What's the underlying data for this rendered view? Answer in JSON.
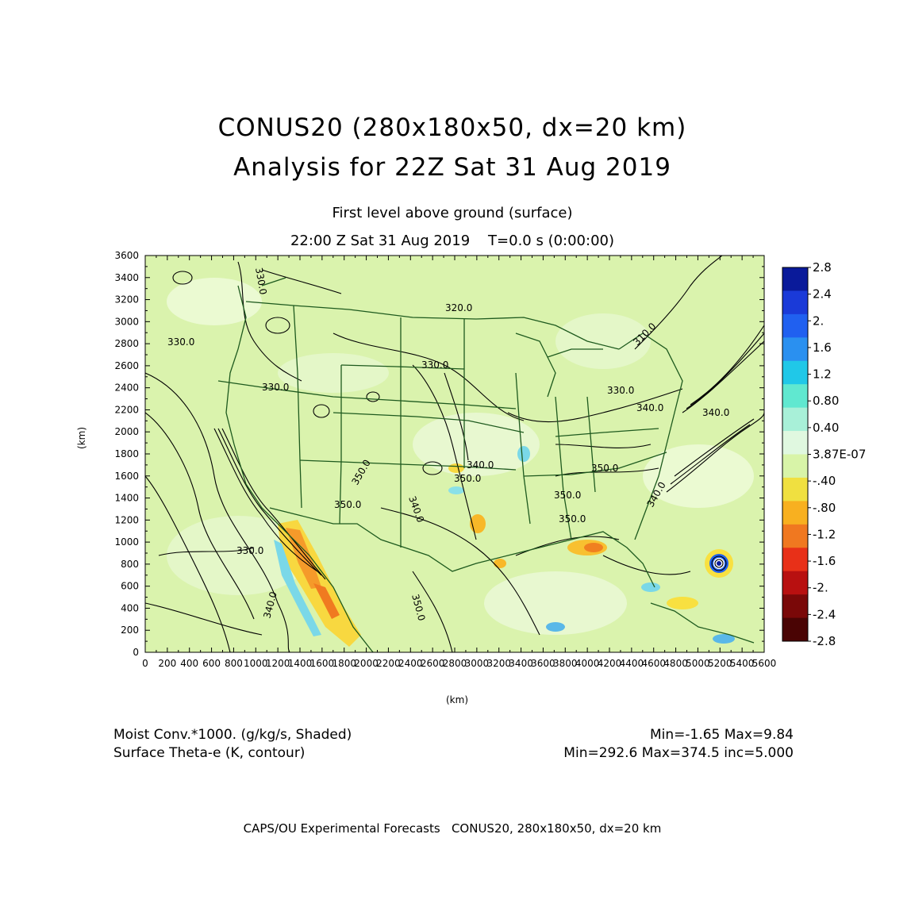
{
  "title": {
    "line1": "CONUS20 (280x180x50, dx=20 km)",
    "line2": "Analysis for 22Z Sat 31 Aug 2019"
  },
  "subtitle": {
    "level": "First level above ground (surface)",
    "time": "22:00 Z Sat 31 Aug 2019    T=0.0 s (0:00:00)"
  },
  "axes": {
    "x_unit": "(km)",
    "y_unit": "(km)",
    "x_ticks": [
      "0",
      "200",
      "400",
      "600",
      "800",
      "1000",
      "1200",
      "1400",
      "1600",
      "1800",
      "2000",
      "2200",
      "2400",
      "2600",
      "2800",
      "3000",
      "3200",
      "3400",
      "3600",
      "3800",
      "4000",
      "4200",
      "4400",
      "4600",
      "4800",
      "5000",
      "5200",
      "5400",
      "5600"
    ],
    "y_ticks": [
      "0",
      "200",
      "400",
      "600",
      "800",
      "1000",
      "1200",
      "1400",
      "1600",
      "1800",
      "2000",
      "2200",
      "2400",
      "2600",
      "2800",
      "3000",
      "3200",
      "3400",
      "3600"
    ],
    "x_range": [
      0,
      5600
    ],
    "y_range": [
      0,
      3600
    ]
  },
  "colorbar": {
    "labels": [
      "2.8",
      "2.4",
      "2.",
      "1.6",
      "1.2",
      "0.80",
      "0.40",
      "3.87E-07",
      "-.40",
      "-.80",
      "-1.2",
      "-1.6",
      "-2.",
      "-2.4",
      "-2.8"
    ],
    "colors": [
      "#0a1a9a",
      "#1a3ad8",
      "#2060f0",
      "#2a90f0",
      "#20c8e8",
      "#60e8d0",
      "#a8f0d8",
      "#e0f8e0",
      "#d8f4a8",
      "#f0e040",
      "#f8b020",
      "#f07820",
      "#e83018",
      "#b81010",
      "#7a0808",
      "#4a0404"
    ]
  },
  "contour_labels": [
    "330.0",
    "330.0",
    "330.0",
    "320.0",
    "330.0",
    "340.0",
    "350.0",
    "350.0",
    "340.0",
    "350.0",
    "350.0",
    "330.0",
    "340.0",
    "350.0",
    "330.0",
    "340.0",
    "310.0",
    "340.0",
    "350.0",
    "340.0",
    "350.0"
  ],
  "legend": {
    "shaded_name": "Moist Conv.*1000. (g/kg/s, Shaded)",
    "shaded_stats": "Min=-1.65 Max=9.84",
    "contour_name": "Surface Theta-e (K, contour)",
    "contour_stats": "Min=292.6 Max=374.5 inc=5.000"
  },
  "credit": "CAPS/OU Experimental Forecasts   CONUS20, 280x180x50, dx=20 km"
}
